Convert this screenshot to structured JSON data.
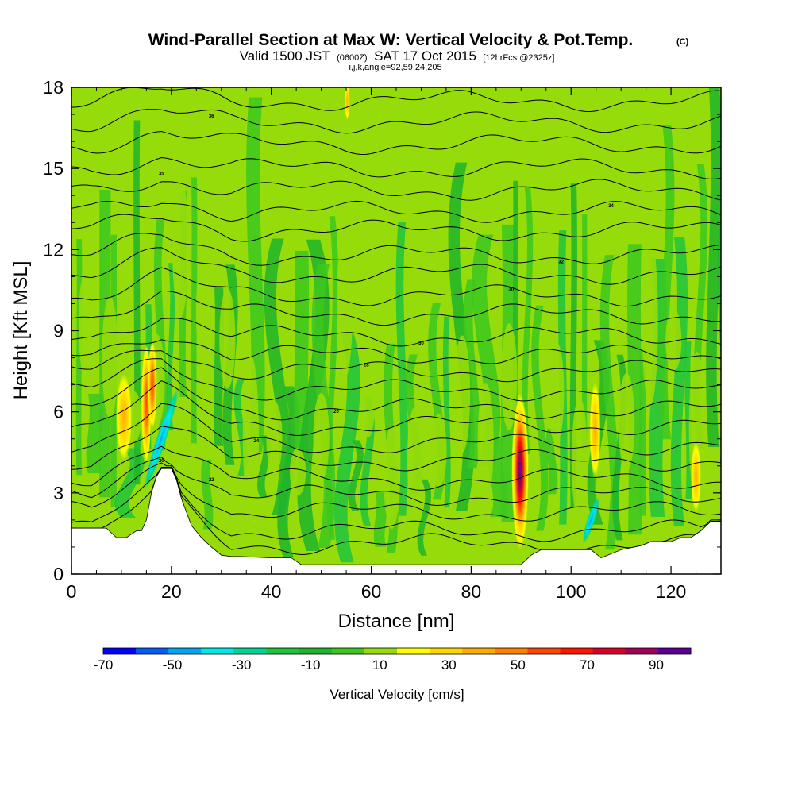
{
  "chart_data": {
    "type": "heatmap",
    "title": "Wind-Parallel Section at Max W: Vertical Velocity & Pot.Temp.",
    "copyright": "(C)",
    "subtitle": {
      "valid": "Valid 1500 JST",
      "utc": "(0600Z)",
      "date": "SAT 17 Oct 2015",
      "forecast": "[12hrFcst@2325z]"
    },
    "section_info": "i,j,k,angle=92,59,24,205",
    "xlabel": "Distance [nm]",
    "ylabel": "Height [Kft MSL]",
    "xlim": [
      0,
      130
    ],
    "ylim": [
      0,
      18
    ],
    "x_ticks": [
      "0",
      "20",
      "40",
      "60",
      "80",
      "100",
      "120"
    ],
    "y_ticks": [
      "0",
      "3",
      "6",
      "9",
      "12",
      "15",
      "18"
    ],
    "colorbar": {
      "label": "Vertical Velocity [cm/s]",
      "ticks": [
        "-70",
        "-50",
        "-30",
        "-10",
        "10",
        "30",
        "50",
        "70",
        "90"
      ],
      "levels": [
        -70,
        -60,
        -50,
        -40,
        -30,
        -20,
        -10,
        0,
        10,
        20,
        30,
        40,
        50,
        60,
        70,
        80,
        90,
        100
      ],
      "colors": [
        "#0000ff",
        "#005ef5",
        "#00a6f2",
        "#00e8e8",
        "#00d496",
        "#1ec43c",
        "#1eb52a",
        "#3cc81e",
        "#96dc0a",
        "#ffff00",
        "#ffd700",
        "#ffaa00",
        "#ff8000",
        "#ff4500",
        "#ff1400",
        "#d70028",
        "#a0005a"
      ],
      "extra_color": "#5a0096"
    },
    "terrain": {
      "x": [
        0,
        7,
        9,
        11,
        13,
        14,
        15,
        16,
        17,
        18,
        19,
        20,
        21,
        22,
        24,
        26,
        28,
        30,
        32,
        34,
        40,
        42,
        44,
        46,
        48,
        50,
        60,
        62,
        64,
        66,
        68,
        70,
        75,
        78,
        80,
        82,
        86,
        88,
        90,
        92,
        94,
        96,
        100,
        102,
        104,
        106,
        110,
        114,
        116,
        118,
        120,
        122,
        124,
        126,
        128,
        130
      ],
      "y": [
        1.7,
        1.7,
        1.35,
        1.35,
        1.6,
        1.6,
        2.0,
        3.0,
        3.6,
        3.9,
        3.9,
        3.9,
        3.5,
        2.8,
        1.8,
        1.35,
        1.0,
        0.7,
        0.65,
        0.65,
        0.6,
        0.6,
        0.6,
        0.35,
        0.35,
        0.35,
        0.35,
        0.35,
        0.35,
        0.35,
        0.35,
        0.35,
        0.35,
        0.35,
        0.35,
        0.35,
        0.35,
        0.35,
        0.35,
        0.7,
        0.9,
        0.9,
        0.9,
        0.9,
        0.9,
        0.6,
        0.9,
        1.05,
        1.2,
        1.2,
        1.2,
        1.35,
        1.35,
        1.6,
        1.95,
        1.95
      ]
    },
    "theta_contours": [
      {
        "h": 1.1,
        "label": ""
      },
      {
        "h": 1.6,
        "label": ""
      },
      {
        "h": 2.3,
        "label": "20"
      },
      {
        "h": 2.9,
        "label": ""
      },
      {
        "h": 3.5,
        "label": "22"
      },
      {
        "h": 4.2,
        "label": ""
      },
      {
        "h": 4.8,
        "label": "24"
      },
      {
        "h": 5.5,
        "label": ""
      },
      {
        "h": 6.1,
        "label": "26"
      },
      {
        "h": 6.8,
        "label": ""
      },
      {
        "h": 7.5,
        "label": "28"
      },
      {
        "h": 8.1,
        "label": ""
      },
      {
        "h": 8.8,
        "label": "30"
      },
      {
        "h": 9.6,
        "label": ""
      },
      {
        "h": 10.3,
        "label": "30"
      },
      {
        "h": 11.1,
        "label": ""
      },
      {
        "h": 11.8,
        "label": "32"
      },
      {
        "h": 12.7,
        "label": ""
      },
      {
        "h": 13.4,
        "label": "34"
      },
      {
        "h": 14.2,
        "label": ""
      },
      {
        "h": 15.0,
        "label": "35"
      },
      {
        "h": 15.9,
        "label": ""
      },
      {
        "h": 16.7,
        "label": "36"
      },
      {
        "h": 17.5,
        "label": ""
      }
    ],
    "updrafts": [
      {
        "x": 10.5,
        "y": 5.8,
        "w": 1.6,
        "h": 1.6,
        "value": 30
      },
      {
        "x": 15.0,
        "y": 6.3,
        "w": 1.0,
        "h": 2.2,
        "value": 55
      },
      {
        "x": 16.2,
        "y": 7.0,
        "w": 0.9,
        "h": 1.6,
        "value": 40
      },
      {
        "x": 89.8,
        "y": 3.8,
        "w": 1.7,
        "h": 2.9,
        "value": 95
      },
      {
        "x": 104.8,
        "y": 5.3,
        "w": 1.1,
        "h": 1.8,
        "value": 35
      },
      {
        "x": 125.0,
        "y": 3.6,
        "w": 1.0,
        "h": 1.3,
        "value": 30
      },
      {
        "x": 55.2,
        "y": 17.5,
        "w": 0.5,
        "h": 0.7,
        "value": 15
      }
    ],
    "downdrafts": [
      {
        "x": 18.0,
        "y": 5.0,
        "w": 1.0,
        "h": 2.0,
        "value": -35
      },
      {
        "x": 104.0,
        "y": 2.0,
        "w": 0.8,
        "h": 0.9,
        "value": -20
      }
    ]
  }
}
